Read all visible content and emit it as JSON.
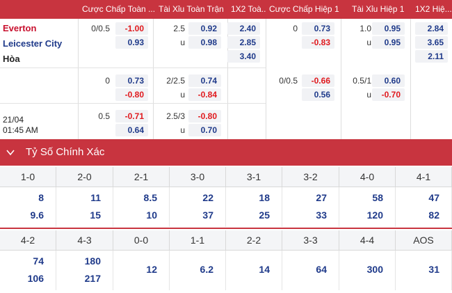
{
  "header": {
    "cols": [
      "Cược Chấp Toàn ...",
      "Tài Xỉu Toàn Trận",
      "1X2 Toà...",
      "Cược Chấp Hiệp 1",
      "Tài Xỉu Hiệp 1",
      "1X2 Hiệ..."
    ]
  },
  "match": {
    "home": "Everton",
    "away": "Leicester City",
    "draw": "Hòa",
    "date": "21/04",
    "time": "01:45 AM"
  },
  "rows": [
    {
      "ft_hdp_line": "0/0.5",
      "ft_hdp_home": "-1.00",
      "ft_hdp_away": "0.93",
      "ft_ou_line": "2.5",
      "ft_ou_over": "0.92",
      "ft_ou_u": "u",
      "ft_ou_under": "0.98",
      "ft_1x2_home": "2.40",
      "ft_1x2_away": "2.85",
      "ft_1x2_draw": "3.40",
      "h1_hdp_line": "0",
      "h1_hdp_home": "0.73",
      "h1_hdp_away": "-0.83",
      "h1_ou_line": "1.0",
      "h1_ou_over": "0.95",
      "h1_ou_u": "u",
      "h1_ou_under": "0.95",
      "h1_1x2_home": "2.84",
      "h1_1x2_away": "3.65",
      "h1_1x2_draw": "2.11"
    },
    {
      "ft_hdp_line": "0",
      "ft_hdp_home": "0.73",
      "ft_hdp_away": "-0.80",
      "ft_ou_line": "2/2.5",
      "ft_ou_over": "0.74",
      "ft_ou_u": "u",
      "ft_ou_under": "-0.84",
      "h1_hdp_line": "0/0.5",
      "h1_hdp_home": "-0.66",
      "h1_hdp_away": "0.56",
      "h1_ou_line": "0.5/1",
      "h1_ou_over": "0.60",
      "h1_ou_u": "u",
      "h1_ou_under": "-0.70"
    },
    {
      "ft_hdp_line": "0.5",
      "ft_hdp_home": "-0.71",
      "ft_hdp_away": "0.64",
      "ft_ou_line": "2.5/3",
      "ft_ou_over": "-0.80",
      "ft_ou_u": "u",
      "ft_ou_under": "0.70"
    }
  ],
  "correct_score": {
    "title": "Tỷ Số Chính Xác",
    "icon": "chevron-down-icon",
    "row1": [
      {
        "score": "1-0",
        "home": "8",
        "away": "9.6"
      },
      {
        "score": "2-0",
        "home": "11",
        "away": "15"
      },
      {
        "score": "2-1",
        "home": "8.5",
        "away": "10"
      },
      {
        "score": "3-0",
        "home": "22",
        "away": "37"
      },
      {
        "score": "3-1",
        "home": "18",
        "away": "25"
      },
      {
        "score": "3-2",
        "home": "27",
        "away": "33"
      },
      {
        "score": "4-0",
        "home": "58",
        "away": "120"
      },
      {
        "score": "4-1",
        "home": "47",
        "away": "82"
      }
    ],
    "row2": [
      {
        "score": "4-2",
        "home": "74",
        "away": "106"
      },
      {
        "score": "4-3",
        "home": "180",
        "away": "217"
      },
      {
        "score": "0-0",
        "single": "12"
      },
      {
        "score": "1-1",
        "single": "6.2"
      },
      {
        "score": "2-2",
        "single": "14"
      },
      {
        "score": "3-3",
        "single": "64"
      },
      {
        "score": "4-4",
        "single": "300"
      },
      {
        "score": "AOS",
        "single": "31"
      }
    ]
  },
  "colors": {
    "header_red": "#c8343f",
    "home_red": "#c8102e",
    "away_blue": "#1f3a8a",
    "negative_red": "#e0191d"
  }
}
